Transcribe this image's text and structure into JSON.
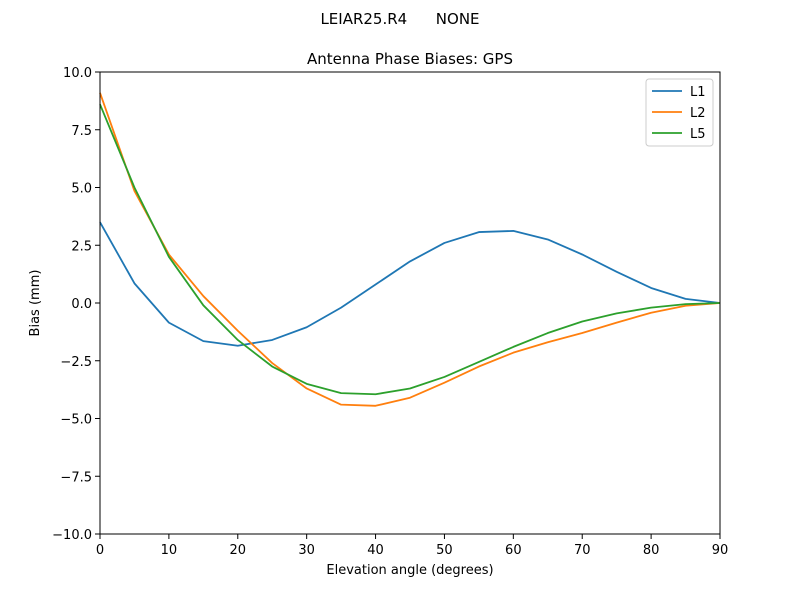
{
  "figure": {
    "suptitle": "LEIAR25.R4      NONE"
  },
  "chart_data": {
    "type": "line",
    "title": "Antenna Phase Biases: GPS",
    "xlabel": "Elevation angle (degrees)",
    "ylabel": "Bias (mm)",
    "xlim": [
      0,
      90
    ],
    "ylim": [
      -10,
      10
    ],
    "xticks": [
      0,
      10,
      20,
      30,
      40,
      50,
      60,
      70,
      80,
      90
    ],
    "xtick_labels": [
      "0",
      "10",
      "20",
      "30",
      "40",
      "50",
      "60",
      "70",
      "80",
      "90"
    ],
    "yticks": [
      -10,
      -7.5,
      -5,
      -2.5,
      0,
      2.5,
      5,
      7.5,
      10
    ],
    "ytick_labels": [
      "−10.0",
      "−7.5",
      "−5.0",
      "−2.5",
      "0.0",
      "2.5",
      "5.0",
      "7.5",
      "10.0"
    ],
    "grid": false,
    "legend_position": "top-right",
    "x": [
      0,
      5,
      10,
      15,
      20,
      25,
      30,
      35,
      40,
      45,
      50,
      55,
      60,
      65,
      70,
      75,
      80,
      85,
      90
    ],
    "series": [
      {
        "name": "L1",
        "color": "#1f77b4",
        "values": [
          3.5,
          0.85,
          -0.85,
          -1.65,
          -1.85,
          -1.6,
          -1.05,
          -0.2,
          0.8,
          1.8,
          2.6,
          3.07,
          3.12,
          2.75,
          2.1,
          1.35,
          0.65,
          0.18,
          0.0
        ]
      },
      {
        "name": "L2",
        "color": "#ff7f0e",
        "values": [
          9.1,
          4.85,
          2.1,
          0.3,
          -1.2,
          -2.6,
          -3.7,
          -4.4,
          -4.45,
          -4.1,
          -3.45,
          -2.75,
          -2.15,
          -1.7,
          -1.3,
          -0.85,
          -0.42,
          -0.12,
          0.0
        ]
      },
      {
        "name": "L5",
        "color": "#2ca02c",
        "values": [
          8.6,
          5.0,
          2.0,
          -0.1,
          -1.6,
          -2.75,
          -3.5,
          -3.9,
          -3.95,
          -3.7,
          -3.2,
          -2.55,
          -1.9,
          -1.3,
          -0.8,
          -0.45,
          -0.2,
          -0.05,
          0.0
        ]
      }
    ]
  }
}
